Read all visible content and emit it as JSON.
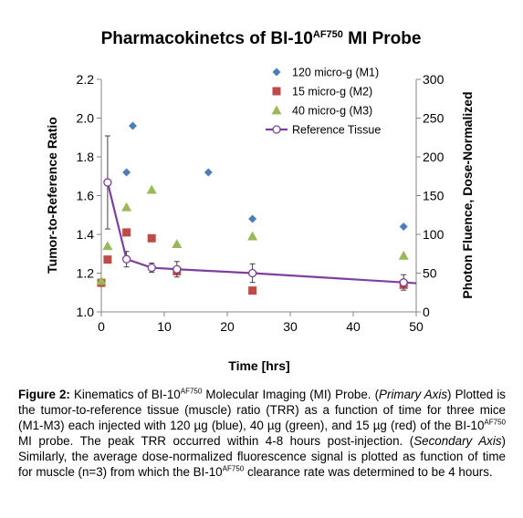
{
  "chart_data": {
    "type": "scatter",
    "title": {
      "pre": "Pharmacokinetcs of BI-10",
      "sup": "AF750",
      "post": " MI Probe"
    },
    "xlabel": "Time [hrs]",
    "ylabel": "Tumor-to-Reference Ratio",
    "y2label": "Photon Fluence, Dose-Normalized",
    "xlim": [
      0,
      50
    ],
    "ylim": [
      1.0,
      2.2
    ],
    "y2lim": [
      0,
      300
    ],
    "xticks": [
      "0",
      "10",
      "20",
      "30",
      "40",
      "50"
    ],
    "yticks": [
      "1.0",
      "1.2",
      "1.4",
      "1.6",
      "1.8",
      "2.0",
      "2.2"
    ],
    "y2ticks": [
      "0",
      "50",
      "100",
      "150",
      "200",
      "250",
      "300"
    ],
    "grid": false,
    "legend_position": "top-right",
    "series": [
      {
        "name": "120 micro-g (M1)",
        "marker": "diamond",
        "color": "#4a7ebb",
        "axis": "primary",
        "points": [
          [
            0,
            1.15
          ],
          [
            4,
            1.72
          ],
          [
            5,
            1.96
          ],
          [
            17,
            1.72
          ],
          [
            24,
            1.48
          ],
          [
            48,
            1.44
          ]
        ]
      },
      {
        "name": "15 micro-g (M2)",
        "marker": "square",
        "color": "#be4b48",
        "axis": "primary",
        "points": [
          [
            0,
            1.15
          ],
          [
            1,
            1.27
          ],
          [
            4,
            1.41
          ],
          [
            8,
            1.38
          ],
          [
            12,
            1.21
          ],
          [
            24,
            1.11
          ],
          [
            48,
            1.14
          ]
        ]
      },
      {
        "name": "40 micro-g (M3)",
        "marker": "triangle",
        "color": "#98b954",
        "axis": "primary",
        "points": [
          [
            0,
            1.16
          ],
          [
            1,
            1.34
          ],
          [
            4,
            1.54
          ],
          [
            8,
            1.63
          ],
          [
            12,
            1.35
          ],
          [
            24,
            1.39
          ],
          [
            48,
            1.29
          ]
        ]
      },
      {
        "name": "Reference Tissue",
        "marker": "circle-open-line",
        "color": "#7e3f9d",
        "axis": "secondary",
        "points": [
          [
            1,
            167
          ],
          [
            4,
            68
          ],
          [
            8,
            57
          ],
          [
            12,
            55
          ],
          [
            24,
            50
          ],
          [
            48,
            38
          ],
          [
            50,
            37
          ]
        ],
        "error": [
          [
            1,
            60
          ],
          [
            4,
            10
          ],
          [
            8,
            6
          ],
          [
            12,
            10
          ],
          [
            24,
            12
          ],
          [
            48,
            10
          ]
        ]
      }
    ]
  },
  "caption": {
    "label": "Figure 2:",
    "s1": " Kinematics of BI-10",
    "sup1": "AF750",
    "s2": " Molecular Imaging (MI) Probe. (",
    "i1": "Primary Axis",
    "s3": ") Plotted is the tumor-to-reference tissue (muscle) ratio (TRR) as a function of time for three mice (M1-M3) each injected with 120 µg (blue), 40 µg (green), and 15 µg (red) of the BI-10",
    "sup2": "AF750",
    "s4": " MI probe. The peak TRR occurred within 4-8 hours post-injection. (",
    "i2": "Secondary Axis",
    "s5": ") Similarly, the average dose-normalized fluorescence signal is plotted as function of time for muscle (n=3) from which the BI-10",
    "sup3": "AF750",
    "s6": " clearance rate was determined to be 4 hours."
  }
}
